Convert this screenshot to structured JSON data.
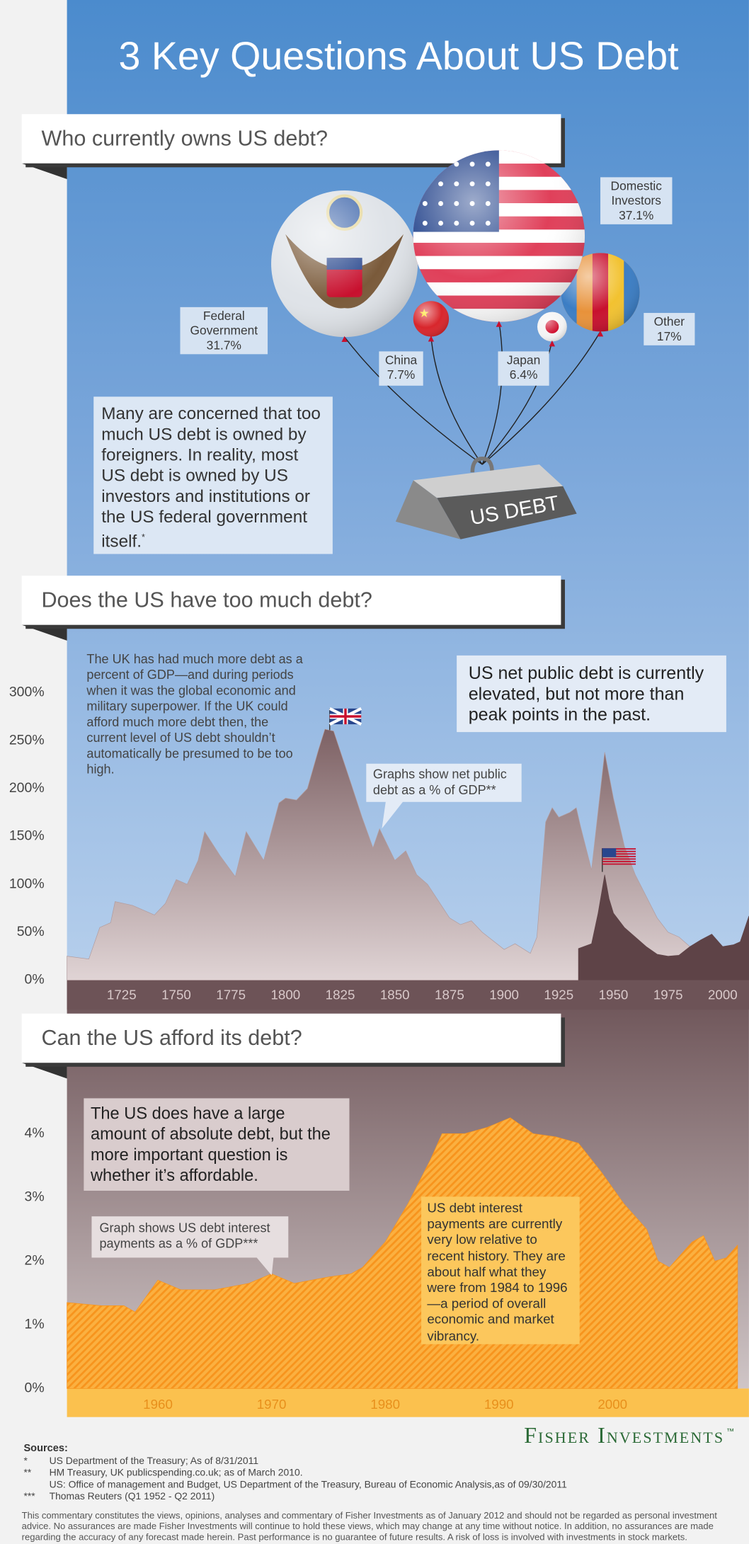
{
  "title": "3 Key Questions About US Debt",
  "headings": [
    "Who currently owns US debt?",
    "Does the US have too much debt?",
    "Can the US afford its debt?"
  ],
  "chart_data": [
    {
      "type": "balloon",
      "categories": [
        "Domestic Investors",
        "Federal Government",
        "China",
        "Japan",
        "Other"
      ],
      "values": [
        37.1,
        31.7,
        7.7,
        6.4,
        17
      ],
      "value_labels": [
        "37.1%",
        "31.7%",
        "7.7%",
        "6.4%",
        "17%"
      ],
      "colors": [
        "#e0405a",
        "#dfe3e8",
        "#d8262c",
        "#f4f4f4",
        "#e8923a"
      ],
      "weight_label": "US DEBT",
      "note": "Many are concerned that too much US debt is owned by foreigners. In reality, most US debt is owned by US investors and institutions or the US federal government itself.",
      "note_marker": "*"
    },
    {
      "type": "area",
      "series": [
        {
          "color": "#b29c9e",
          "x": [
            1700,
            1710,
            1715,
            1720,
            1722,
            1730,
            1740,
            1745,
            1750,
            1755,
            1760,
            1763,
            1770,
            1777,
            1782,
            1790,
            1797,
            1800,
            1805,
            1810,
            1815,
            1818,
            1822,
            1830,
            1835,
            1840,
            1843,
            1850,
            1855,
            1860,
            1865,
            1875,
            1880,
            1885,
            1890,
            1900,
            1905,
            1912,
            1915,
            1919,
            1922,
            1925,
            1930,
            1933,
            1935,
            1940,
            1946,
            1950,
            1955,
            1960,
            1970,
            1975,
            1980,
            1990,
            1995,
            2000,
            2005,
            2008,
            2012
          ],
          "values": [
            25,
            22,
            55,
            60,
            82,
            78,
            68,
            80,
            105,
            100,
            125,
            155,
            130,
            108,
            155,
            125,
            185,
            190,
            188,
            200,
            240,
            262,
            260,
            205,
            170,
            138,
            158,
            125,
            135,
            110,
            100,
            65,
            58,
            62,
            50,
            32,
            38,
            28,
            45,
            165,
            180,
            170,
            175,
            180,
            160,
            115,
            238,
            190,
            140,
            110,
            65,
            50,
            45,
            25,
            40,
            30,
            35,
            40,
            55
          ]
        },
        {
          "color": "#5e4347",
          "x": [
            1934,
            1940,
            1943,
            1946,
            1948,
            1950,
            1955,
            1960,
            1965,
            1970,
            1975,
            1980,
            1985,
            1990,
            1995,
            2000,
            2005,
            2008,
            2012
          ],
          "values": [
            33,
            38,
            70,
            110,
            85,
            70,
            55,
            45,
            35,
            27,
            25,
            26,
            35,
            42,
            48,
            35,
            37,
            40,
            67
          ]
        }
      ],
      "xlim": [
        1700,
        2012
      ],
      "xticks": [
        1725,
        1750,
        1775,
        1800,
        1825,
        1850,
        1875,
        1900,
        1925,
        1950,
        1975,
        2000
      ],
      "ylim": [
        0,
        300
      ],
      "yticks": [
        {
          "value": 0,
          "label": "0%"
        },
        {
          "value": 50,
          "label": "50%"
        },
        {
          "value": 100,
          "label": "100%"
        },
        {
          "value": 150,
          "label": "150%"
        },
        {
          "value": 200,
          "label": "200%"
        },
        {
          "value": 250,
          "label": "250%"
        },
        {
          "value": 300,
          "label": "300%"
        }
      ],
      "notes": [
        "The UK has had much more debt as a percent of GDP—and during periods when it was the global economic and military superpower. If the UK could afford much more debt then, the current level of US debt shouldn’t automatically be presumed to be too high.",
        "US net public debt is currently elevated, but not more than peak points in the past.",
        "Graphs show net public debt as a % of GDP**"
      ]
    },
    {
      "type": "area",
      "series": [
        {
          "color": "#f7941d",
          "x": [
            1952,
            1955,
            1957,
            1958,
            1960,
            1962,
            1965,
            1968,
            1970,
            1972,
            1975,
            1977,
            1978,
            1980,
            1982,
            1984,
            1985,
            1987,
            1989,
            1991,
            1993,
            1995,
            1997,
            1999,
            2001,
            2003,
            2004,
            2005,
            2006,
            2007,
            2008,
            2009,
            2010,
            2011
          ],
          "values": [
            1.35,
            1.3,
            1.3,
            1.2,
            1.7,
            1.55,
            1.55,
            1.65,
            1.8,
            1.65,
            1.75,
            1.8,
            1.9,
            2.3,
            2.9,
            3.6,
            4.0,
            4.0,
            4.1,
            4.25,
            4.0,
            3.95,
            3.85,
            3.4,
            2.9,
            2.5,
            2.0,
            1.9,
            2.1,
            2.3,
            2.4,
            2.0,
            2.05,
            2.25
          ]
        }
      ],
      "xlim": [
        1952,
        2012
      ],
      "xticks": [
        1960,
        1970,
        1980,
        1990,
        2000
      ],
      "ylim": [
        0,
        4
      ],
      "yticks": [
        {
          "value": 0,
          "label": "0%"
        },
        {
          "value": 1,
          "label": "1%"
        },
        {
          "value": 2,
          "label": "2%"
        },
        {
          "value": 3,
          "label": "3%"
        },
        {
          "value": 4,
          "label": "4%"
        }
      ],
      "notes": [
        "The US does have a large amount of absolute debt, but the more important question is whether it’s affordable.",
        "Graph shows US debt interest payments as a % of GDP***",
        "US debt interest payments are currently very low relative to recent history. They are about half what they were from 1984 to 1996—a period of overall  economic and market vibrancy."
      ]
    }
  ],
  "footer": {
    "logo": "Fisher Investments",
    "logo_mark": "™",
    "sources_title": "Sources:",
    "sources": [
      {
        "marker": "*",
        "text": "US Department of the Treasury; As of 8/31/2011"
      },
      {
        "marker": "**",
        "text": "HM Treasury, UK publicspending.co.uk; as of March 2010."
      },
      {
        "text": "US: Office of management and Budget, US Department of the Treasury, Bureau of Economic Analysis,as of 09/30/2011"
      },
      {
        "marker": "***",
        "text": "Thomas Reuters (Q1 1952 - Q2 2011)"
      }
    ],
    "disclaimer": "This commentary constitutes the views, opinions, analyses and commentary of Fisher Investments as of January 2012 and should not be regarded as personal investment advice. No assurances are made Fisher Investments will continue to hold these views, which may change at any time without notice. In addition, no assurances are made regarding the accuracy of any forecast made herein. Past performance is no guarantee of future results. A risk of loss is involved with investments in stock markets."
  }
}
